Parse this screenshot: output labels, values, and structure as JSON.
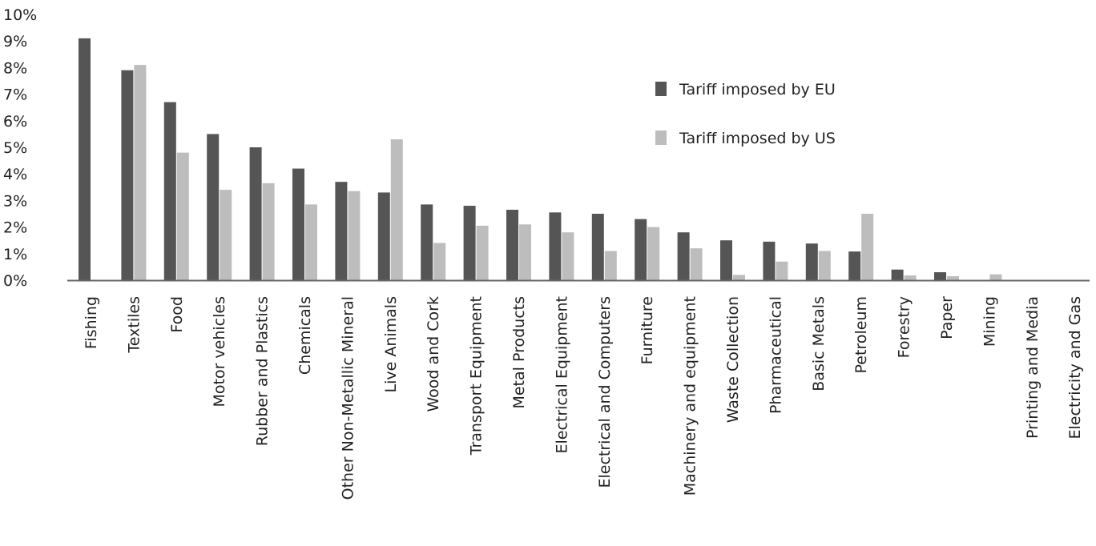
{
  "chart_data": {
    "type": "bar",
    "title": "",
    "xlabel": "",
    "ylabel": "",
    "ylim": [
      0,
      10
    ],
    "yticks": [
      "0%",
      "1%",
      "2%",
      "3%",
      "4%",
      "5%",
      "6%",
      "7%",
      "8%",
      "9%",
      "10%"
    ],
    "grid": false,
    "legend_position": "top-right",
    "categories": [
      "Fishing",
      "Textiles",
      "Food",
      "Motor vehicles",
      "Rubber and Plastics",
      "Chemicals",
      "Other Non-Metallic Mineral",
      "Live Animals",
      "Wood and Cork",
      "Transport Equipment",
      "Metal Products",
      "Electrical Equipment",
      "Electrical and Computers",
      "Furniture",
      "Machinery and equipment",
      "Waste Collection",
      "Pharmaceutical",
      "Basic Metals",
      "Petroleum",
      "Forestry",
      "Paper",
      "Mining",
      "Printing and Media",
      "Electricity and Gas"
    ],
    "series": [
      {
        "name": "Tariff imposed by EU",
        "color": "#555555",
        "values": [
          9.1,
          7.9,
          6.7,
          5.5,
          5.0,
          4.2,
          3.7,
          3.3,
          2.85,
          2.8,
          2.65,
          2.55,
          2.5,
          2.3,
          1.8,
          1.5,
          1.45,
          1.38,
          1.08,
          0.4,
          0.3,
          0.0,
          0.0,
          0.0
        ]
      },
      {
        "name": "Tariff imposed by US",
        "color": "#bdbdbd",
        "values": [
          0.0,
          8.1,
          4.8,
          3.4,
          3.65,
          2.85,
          3.35,
          5.3,
          1.4,
          2.05,
          2.1,
          1.8,
          1.1,
          2.0,
          1.2,
          0.2,
          0.7,
          1.1,
          2.5,
          0.18,
          0.15,
          0.22,
          0.0,
          0.0
        ]
      }
    ]
  }
}
